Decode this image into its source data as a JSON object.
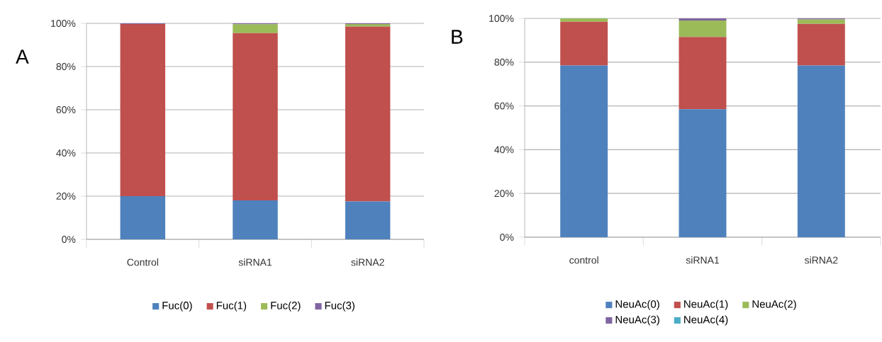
{
  "chart_data": [
    {
      "type": "bar",
      "title": "A",
      "stacked": true,
      "categories": [
        "Control",
        "siRNA1",
        "siRNA2"
      ],
      "series": [
        {
          "name": "Fuc(0)",
          "color": "#4f81bd",
          "values": [
            20,
            18,
            17.5
          ]
        },
        {
          "name": "Fuc(1)",
          "color": "#c0504d",
          "values": [
            79.7,
            77.5,
            81
          ]
        },
        {
          "name": "Fuc(2)",
          "color": "#9bbb59",
          "values": [
            0,
            4.1,
            1.2
          ]
        },
        {
          "name": "Fuc(3)",
          "color": "#8064a2",
          "values": [
            0.3,
            0.4,
            0.3
          ]
        }
      ],
      "ylim": [
        0,
        100
      ],
      "yticks": [
        {
          "value": 0,
          "label": "0%"
        },
        {
          "value": 20,
          "label": "20%"
        },
        {
          "value": 40,
          "label": "40%"
        },
        {
          "value": 60,
          "label": "60%"
        },
        {
          "value": 80,
          "label": "80%"
        },
        {
          "value": 100,
          "label": "100%"
        }
      ],
      "grid": "y",
      "legend": "bottom"
    },
    {
      "type": "bar",
      "title": "B",
      "stacked": true,
      "categories": [
        "control",
        "siRNA1",
        "siRNA2"
      ],
      "series": [
        {
          "name": "NeuAc(0)",
          "color": "#4f81bd",
          "values": [
            78.5,
            58.5,
            78.5
          ]
        },
        {
          "name": "NeuAc(1)",
          "color": "#c0504d",
          "values": [
            20,
            33,
            19
          ]
        },
        {
          "name": "NeuAc(2)",
          "color": "#9bbb59",
          "values": [
            1.5,
            7.5,
            2
          ]
        },
        {
          "name": "NeuAc(3)",
          "color": "#8064a2",
          "values": [
            0,
            1,
            0.5
          ]
        },
        {
          "name": "NeuAc(4)",
          "color": "#4bacc6",
          "values": [
            0,
            0,
            0
          ]
        }
      ],
      "ylim": [
        0,
        100
      ],
      "yticks": [
        {
          "value": 0,
          "label": "0%"
        },
        {
          "value": 20,
          "label": "20%"
        },
        {
          "value": 40,
          "label": "40%"
        },
        {
          "value": 60,
          "label": "60%"
        },
        {
          "value": 80,
          "label": "80%"
        },
        {
          "value": 100,
          "label": "100%"
        }
      ],
      "grid": "y",
      "legend": "bottom"
    }
  ]
}
